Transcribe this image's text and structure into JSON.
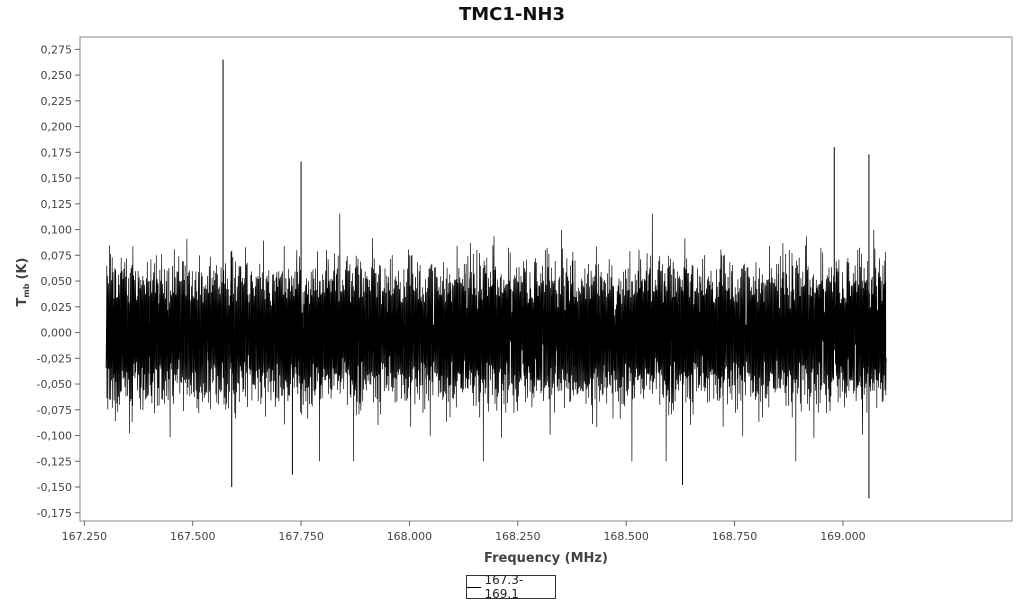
{
  "chart_data": {
    "type": "line",
    "title": "TMC1-NH3",
    "xlabel": "Frequency (MHz)",
    "ylabel": "T",
    "ylabel_sub": "mb",
    "ylabel_unit": "(K)",
    "xlim": [
      167.24,
      169.39
    ],
    "ylim": [
      -0.183,
      0.287
    ],
    "x_ticks": [
      167.25,
      167.5,
      167.75,
      168.0,
      168.25,
      168.5,
      168.75,
      169.0
    ],
    "x_tick_labels": [
      "167.250",
      "167.500",
      "167.750",
      "168.000",
      "168.250",
      "168.500",
      "168.750",
      "169.000"
    ],
    "y_ticks": [
      -0.175,
      -0.15,
      -0.125,
      -0.1,
      -0.075,
      -0.05,
      -0.025,
      0.0,
      0.025,
      0.05,
      0.075,
      0.1,
      0.125,
      0.15,
      0.175,
      0.2,
      0.225,
      0.25,
      0.275
    ],
    "y_tick_labels": [
      "-0,175",
      "-0,150",
      "-0,125",
      "-0,100",
      "-0,075",
      "-0,050",
      "-0,025",
      "0,000",
      "0,025",
      "0,050",
      "0,075",
      "0,100",
      "0,125",
      "0,150",
      "0,175",
      "0,200",
      "0,225",
      "0,250",
      "0,275"
    ],
    "grid": false,
    "legend_position": "bottom-center",
    "series": [
      {
        "name": "167.3-169.1",
        "color": "#000000",
        "x_range": [
          167.3,
          169.1
        ],
        "noise_band": [
          -0.1,
          0.1
        ],
        "spikes": [
          {
            "x": 167.57,
            "y": 0.265
          },
          {
            "x": 167.75,
            "y": 0.166
          },
          {
            "x": 168.98,
            "y": 0.18
          },
          {
            "x": 169.06,
            "y": 0.173
          },
          {
            "x": 169.06,
            "y": -0.161
          },
          {
            "x": 167.59,
            "y": -0.15
          },
          {
            "x": 167.73,
            "y": -0.138
          },
          {
            "x": 168.63,
            "y": -0.148
          }
        ]
      }
    ]
  }
}
